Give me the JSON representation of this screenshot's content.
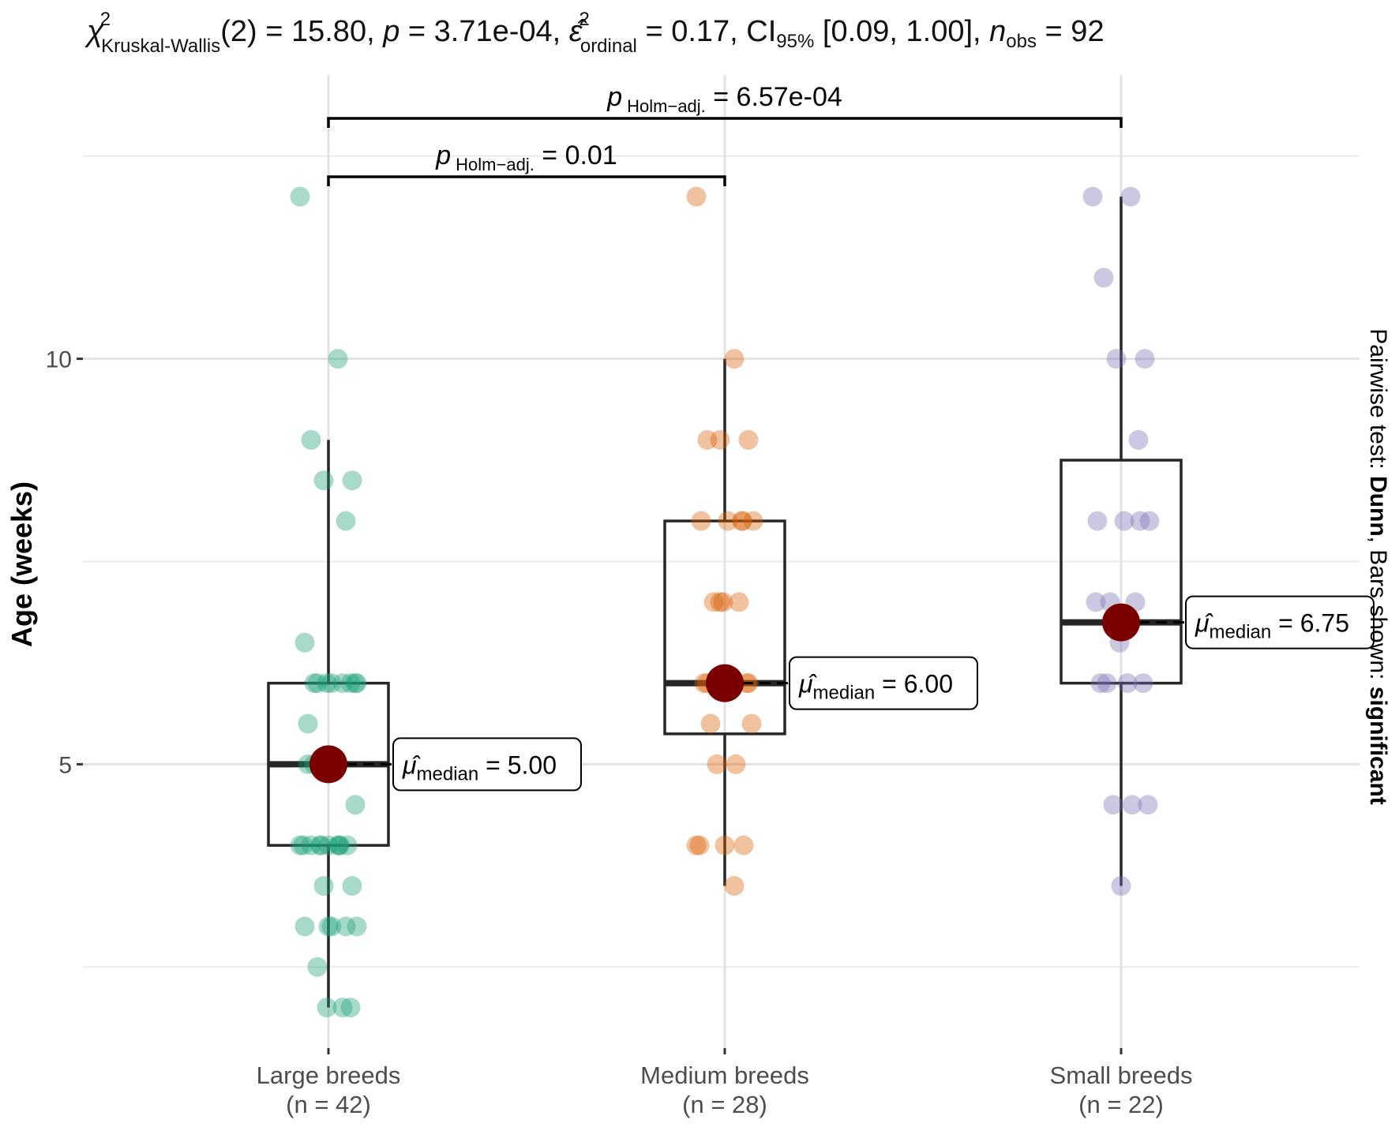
{
  "chart_data": {
    "type": "box-jitter",
    "title": {
      "chi": "χ",
      "chi_sup": "2",
      "chi_sub": "Kruskal-Wallis",
      "df": "(2) = 15.80, ",
      "p_sym": "p",
      "p_val": " = 3.71e-04, ",
      "eps": "ε̂",
      "eps_sup": "2",
      "eps_sub": "ordinal",
      "eps_val": " = 0.17, CI",
      "ci_sub": "95%",
      "ci_val": " [0.09, 1.00], ",
      "n_sym": "n",
      "n_sub": "obs",
      "n_val": " = 92"
    },
    "ylabel": "Age (weeks)",
    "ylim": [
      1.5,
      13.5
    ],
    "yticks": [
      5,
      10
    ],
    "yticklabels": [
      "5",
      "10"
    ],
    "minor_gridlines": [
      2.5,
      7.5,
      12.5
    ],
    "side_caption": {
      "prefix": "Pairwise test: ",
      "test": "Dunn",
      "middle": ", Bars shown: ",
      "shown": "significant"
    },
    "groups": [
      {
        "name": "Large breeds",
        "n_label": "(n = 42)",
        "color": "#1b9e77",
        "q1": 4,
        "median": 5,
        "q3": 6,
        "whisker_low": 2,
        "whisker_high": 9,
        "mean_label_text": " = 5.00",
        "points": [
          12,
          10,
          9,
          8.5,
          8.5,
          8,
          6.5,
          6,
          6,
          6,
          6,
          6,
          6,
          5.5,
          5,
          5,
          4.5,
          4,
          4,
          4,
          4,
          4,
          4,
          4,
          4,
          3.5,
          3.5,
          3,
          3,
          3,
          3,
          2.5,
          2,
          2,
          2,
          5,
          5,
          6,
          6,
          4,
          4,
          3
        ]
      },
      {
        "name": "Medium breeds",
        "n_label": "(n = 28)",
        "color": "#d95f02",
        "q1": 5.375,
        "median": 6,
        "q3": 8,
        "whisker_low": 3.5,
        "whisker_high": 10,
        "mean_label_text": " = 6.00",
        "points": [
          12,
          10,
          9,
          9,
          9,
          8,
          8,
          8,
          8,
          7,
          7,
          7,
          6,
          6,
          6,
          5.5,
          5.5,
          5,
          5,
          4,
          4,
          4,
          4,
          3.5,
          6,
          6,
          7,
          8
        ]
      },
      {
        "name": "Small breeds",
        "n_label": "(n = 22)",
        "color": "#7570b3",
        "q1": 6,
        "median": 6.75,
        "q3": 8.75,
        "whisker_low": 3.5,
        "whisker_high": 12,
        "mean_label_text": " = 6.75",
        "points": [
          12,
          12,
          11,
          10,
          10,
          9,
          8,
          8,
          8,
          7,
          7,
          6.5,
          6,
          6,
          6,
          6,
          4.5,
          4.5,
          4.5,
          3.5,
          7,
          8
        ]
      }
    ],
    "mean_symbol": "μ̂",
    "mean_sub": "median",
    "comparisons": [
      {
        "from": 0,
        "to": 2,
        "label_p": "p",
        "label_sub": "Holm−adj.",
        "label_val": " = 6.57e-04"
      },
      {
        "from": 0,
        "to": 1,
        "label_p": "p",
        "label_sub": "Holm−adj.",
        "label_val": " = 0.01"
      }
    ],
    "mean_color": "#7a0000"
  }
}
